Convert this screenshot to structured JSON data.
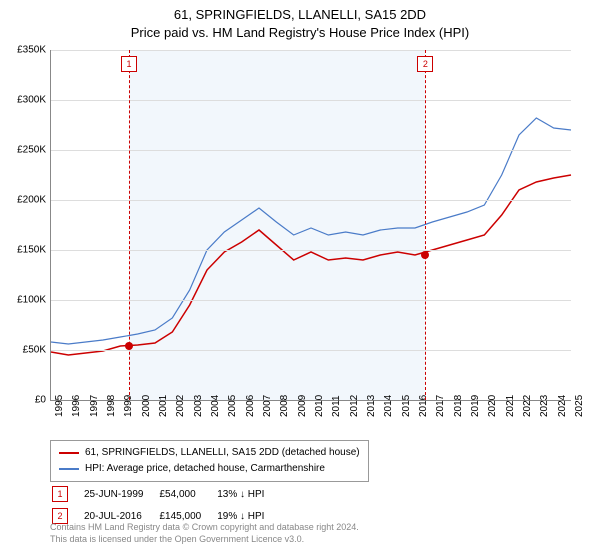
{
  "title_line1": "61, SPRINGFIELDS, LLANELLI, SA15 2DD",
  "title_line2": "Price paid vs. HM Land Registry's House Price Index (HPI)",
  "chart": {
    "type": "line",
    "ylim": [
      0,
      350000
    ],
    "ytick_step": 50000,
    "yticks": [
      "£0",
      "£50K",
      "£100K",
      "£150K",
      "£200K",
      "£250K",
      "£300K",
      "£350K"
    ],
    "x_years": [
      1995,
      1996,
      1997,
      1998,
      1999,
      2000,
      2001,
      2002,
      2003,
      2004,
      2005,
      2006,
      2007,
      2008,
      2009,
      2010,
      2011,
      2012,
      2013,
      2014,
      2015,
      2016,
      2017,
      2018,
      2019,
      2020,
      2021,
      2022,
      2023,
      2024,
      2025
    ],
    "shade_start_year": 1999.5,
    "shade_end_year": 2016.6,
    "series1": {
      "label": "61, SPRINGFIELDS, LLANELLI, SA15 2DD (detached house)",
      "color": "#cc0000",
      "width": 1.5,
      "points": [
        [
          1995,
          48000
        ],
        [
          1996,
          45000
        ],
        [
          1997,
          47000
        ],
        [
          1998,
          49000
        ],
        [
          1999,
          54000
        ],
        [
          2000,
          55000
        ],
        [
          2001,
          57000
        ],
        [
          2002,
          68000
        ],
        [
          2003,
          95000
        ],
        [
          2004,
          130000
        ],
        [
          2005,
          148000
        ],
        [
          2006,
          158000
        ],
        [
          2007,
          170000
        ],
        [
          2008,
          155000
        ],
        [
          2009,
          140000
        ],
        [
          2010,
          148000
        ],
        [
          2011,
          140000
        ],
        [
          2012,
          142000
        ],
        [
          2013,
          140000
        ],
        [
          2014,
          145000
        ],
        [
          2015,
          148000
        ],
        [
          2016,
          145000
        ],
        [
          2017,
          150000
        ],
        [
          2018,
          155000
        ],
        [
          2019,
          160000
        ],
        [
          2020,
          165000
        ],
        [
          2021,
          185000
        ],
        [
          2022,
          210000
        ],
        [
          2023,
          218000
        ],
        [
          2024,
          222000
        ],
        [
          2025,
          225000
        ]
      ]
    },
    "series2": {
      "label": "HPI: Average price, detached house, Carmarthenshire",
      "color": "#4a7bc8",
      "width": 1.2,
      "points": [
        [
          1995,
          58000
        ],
        [
          1996,
          56000
        ],
        [
          1997,
          58000
        ],
        [
          1998,
          60000
        ],
        [
          1999,
          63000
        ],
        [
          2000,
          66000
        ],
        [
          2001,
          70000
        ],
        [
          2002,
          82000
        ],
        [
          2003,
          110000
        ],
        [
          2004,
          150000
        ],
        [
          2005,
          168000
        ],
        [
          2006,
          180000
        ],
        [
          2007,
          192000
        ],
        [
          2008,
          178000
        ],
        [
          2009,
          165000
        ],
        [
          2010,
          172000
        ],
        [
          2011,
          165000
        ],
        [
          2012,
          168000
        ],
        [
          2013,
          165000
        ],
        [
          2014,
          170000
        ],
        [
          2015,
          172000
        ],
        [
          2016,
          172000
        ],
        [
          2017,
          178000
        ],
        [
          2018,
          183000
        ],
        [
          2019,
          188000
        ],
        [
          2020,
          195000
        ],
        [
          2021,
          225000
        ],
        [
          2022,
          265000
        ],
        [
          2023,
          282000
        ],
        [
          2024,
          272000
        ],
        [
          2025,
          270000
        ]
      ]
    },
    "markers": [
      {
        "num": "1",
        "year": 1999.5,
        "value": 54000
      },
      {
        "num": "2",
        "year": 2016.6,
        "value": 145000
      }
    ]
  },
  "sales": [
    {
      "num": "1",
      "date": "25-JUN-1999",
      "price": "£54,000",
      "delta": "13% ↓ HPI"
    },
    {
      "num": "2",
      "date": "20-JUL-2016",
      "price": "£145,000",
      "delta": "19% ↓ HPI"
    }
  ],
  "footnote1": "Contains HM Land Registry data © Crown copyright and database right 2024.",
  "footnote2": "This data is licensed under the Open Government Licence v3.0."
}
